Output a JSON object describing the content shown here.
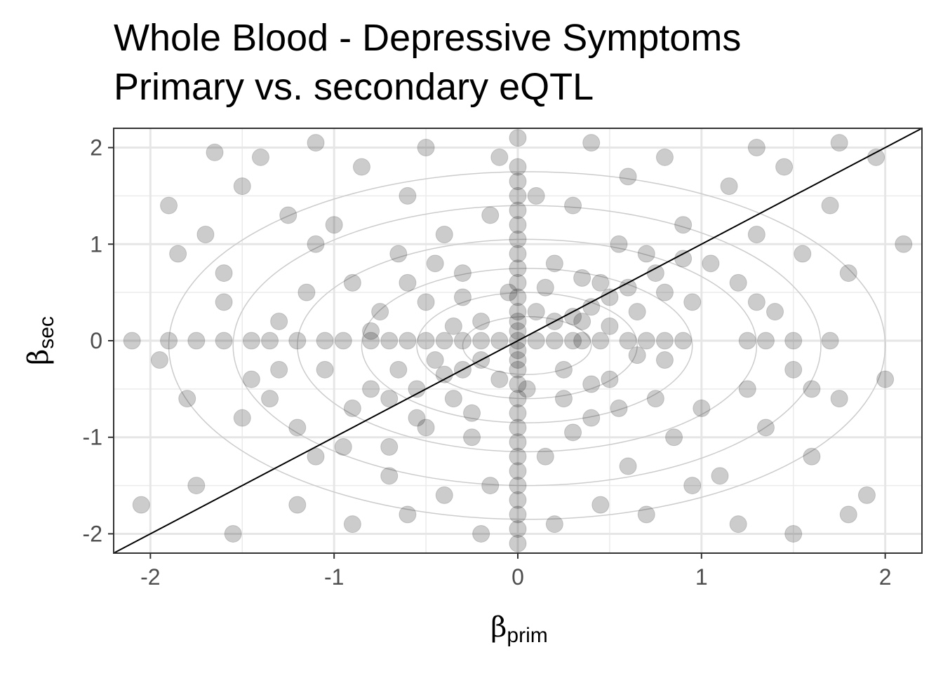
{
  "chart_data": {
    "type": "scatter",
    "title_lines": [
      "Whole Blood - Depressive Symptoms",
      "Primary vs. secondary eQTL"
    ],
    "xlabel": {
      "symbol": "β",
      "subscript": "prim"
    },
    "ylabel": {
      "symbol": "β",
      "subscript": "sec"
    },
    "xlim": [
      -2.2,
      2.2
    ],
    "ylim": [
      -2.2,
      2.2
    ],
    "x_ticks": [
      -2,
      -1,
      0,
      1,
      2
    ],
    "y_ticks": [
      -2,
      -1,
      0,
      1,
      2
    ],
    "x_tick_labels": [
      "-2",
      "-1",
      "0",
      "1",
      "2"
    ],
    "y_tick_labels": [
      "-2",
      "-1",
      "0",
      "1",
      "2"
    ],
    "grid": true,
    "reference_line": {
      "slope": 1,
      "intercept": 0
    },
    "point_color": "#000000",
    "point_alpha": 0.2,
    "contour_color": "#cccccc",
    "points": [
      [
        -1.9,
        1.4
      ],
      [
        -1.85,
        0.9
      ],
      [
        -1.8,
        -0.6
      ],
      [
        -1.7,
        1.1
      ],
      [
        -1.6,
        0.7
      ],
      [
        -1.5,
        1.6
      ],
      [
        -1.45,
        -0.4
      ],
      [
        -1.4,
        1.9
      ],
      [
        -1.35,
        -0.6
      ],
      [
        -1.3,
        0.2
      ],
      [
        -1.25,
        1.3
      ],
      [
        -1.2,
        -0.9
      ],
      [
        -1.15,
        0.5
      ],
      [
        -1.1,
        1.0
      ],
      [
        -1.05,
        -0.3
      ],
      [
        -1.0,
        1.2
      ],
      [
        -0.95,
        -1.1
      ],
      [
        -0.9,
        0.6
      ],
      [
        -0.85,
        1.8
      ],
      [
        -0.8,
        -0.5
      ],
      [
        -0.75,
        0.3
      ],
      [
        -0.7,
        -1.4
      ],
      [
        -0.65,
        0.9
      ],
      [
        -0.6,
        1.5
      ],
      [
        -0.55,
        -0.8
      ],
      [
        -0.5,
        0.4
      ],
      [
        -0.45,
        -0.2
      ],
      [
        -0.4,
        1.1
      ],
      [
        -0.35,
        -0.6
      ],
      [
        -0.3,
        0.7
      ],
      [
        -0.25,
        -1.0
      ],
      [
        -0.2,
        0.2
      ],
      [
        -0.15,
        1.3
      ],
      [
        -0.1,
        -0.4
      ],
      [
        -0.05,
        0.5
      ],
      [
        0.05,
        -0.5
      ],
      [
        0.1,
        0.3
      ],
      [
        0.15,
        -1.2
      ],
      [
        0.2,
        0.8
      ],
      [
        0.25,
        -0.3
      ],
      [
        0.3,
        1.4
      ],
      [
        0.35,
        0.2
      ],
      [
        0.4,
        -0.8
      ],
      [
        0.45,
        0.6
      ],
      [
        0.5,
        -0.4
      ],
      [
        0.55,
        1.0
      ],
      [
        0.6,
        -1.3
      ],
      [
        0.65,
        0.3
      ],
      [
        0.7,
        0.9
      ],
      [
        0.75,
        -0.6
      ],
      [
        0.8,
        0.5
      ],
      [
        0.85,
        -1.0
      ],
      [
        0.9,
        1.2
      ],
      [
        0.95,
        0.4
      ],
      [
        1.0,
        -0.7
      ],
      [
        1.05,
        0.8
      ],
      [
        1.1,
        -1.4
      ],
      [
        1.15,
        1.6
      ],
      [
        1.2,
        0.6
      ],
      [
        1.25,
        -0.5
      ],
      [
        1.3,
        1.1
      ],
      [
        1.35,
        -0.9
      ],
      [
        1.4,
        0.3
      ],
      [
        1.45,
        1.8
      ],
      [
        1.5,
        -0.3
      ],
      [
        1.55,
        0.9
      ],
      [
        1.6,
        -1.2
      ],
      [
        1.7,
        1.4
      ],
      [
        1.75,
        -0.6
      ],
      [
        1.8,
        0.7
      ],
      [
        1.9,
        -1.6
      ],
      [
        1.95,
        1.9
      ],
      [
        2.0,
        -0.4
      ],
      [
        2.1,
        1.0
      ],
      [
        -2.05,
        -1.7
      ],
      [
        -1.95,
        -0.2
      ],
      [
        -1.75,
        -1.5
      ],
      [
        -1.55,
        -2.0
      ],
      [
        -1.5,
        -0.8
      ],
      [
        -1.2,
        -1.7
      ],
      [
        -1.1,
        -1.2
      ],
      [
        -0.9,
        -1.9
      ],
      [
        -0.6,
        -1.8
      ],
      [
        -0.4,
        -1.6
      ],
      [
        -0.2,
        -2.0
      ],
      [
        0.2,
        -1.9
      ],
      [
        0.45,
        -1.7
      ],
      [
        0.7,
        -1.8
      ],
      [
        0.95,
        -1.5
      ],
      [
        1.2,
        -1.9
      ],
      [
        1.5,
        -2.0
      ],
      [
        1.8,
        -1.8
      ],
      [
        -1.65,
        1.95
      ],
      [
        -1.1,
        2.05
      ],
      [
        -0.5,
        2.0
      ],
      [
        -0.1,
        1.9
      ],
      [
        0.4,
        2.05
      ],
      [
        0.8,
        1.9
      ],
      [
        1.3,
        2.0
      ],
      [
        1.75,
        2.05
      ],
      [
        -0.9,
        -0.7
      ],
      [
        -0.7,
        -0.6
      ],
      [
        -0.55,
        -0.5
      ],
      [
        -0.4,
        -0.35
      ],
      [
        -0.3,
        -0.3
      ],
      [
        -0.2,
        -0.2
      ],
      [
        0.2,
        0.2
      ],
      [
        0.3,
        0.25
      ],
      [
        0.4,
        0.35
      ],
      [
        0.5,
        0.45
      ],
      [
        0.6,
        0.55
      ],
      [
        0.75,
        0.7
      ],
      [
        0.9,
        0.85
      ],
      [
        -0.6,
        0.6
      ],
      [
        -0.45,
        0.8
      ],
      [
        -0.3,
        0.45
      ],
      [
        0.25,
        -0.6
      ],
      [
        0.4,
        -0.45
      ],
      [
        0.55,
        -0.7
      ],
      [
        -0.65,
        -0.3
      ],
      [
        -0.5,
        -0.9
      ],
      [
        0.35,
        0.65
      ],
      [
        0.5,
        0.15
      ],
      [
        0.65,
        -0.15
      ],
      [
        -0.35,
        0.15
      ],
      [
        -0.25,
        -0.75
      ],
      [
        0.15,
        0.55
      ],
      [
        0.3,
        -0.95
      ],
      [
        -0.8,
        0.1
      ],
      [
        0.8,
        -0.2
      ],
      [
        -1.3,
        -0.3
      ],
      [
        1.3,
        0.4
      ],
      [
        -1.6,
        0.4
      ],
      [
        1.6,
        -0.5
      ],
      [
        0.1,
        1.5
      ],
      [
        -0.15,
        -1.5
      ],
      [
        0.6,
        1.7
      ],
      [
        -0.7,
        -1.1
      ],
      [
        -1.9,
        0
      ],
      [
        -1.75,
        0
      ],
      [
        -1.6,
        0
      ],
      [
        -1.45,
        0
      ],
      [
        -1.35,
        0
      ],
      [
        -1.2,
        0
      ],
      [
        -1.05,
        0
      ],
      [
        -0.95,
        0
      ],
      [
        -0.8,
        0
      ],
      [
        -0.7,
        0
      ],
      [
        -0.6,
        0
      ],
      [
        -0.5,
        0
      ],
      [
        -0.4,
        0
      ],
      [
        -0.3,
        0
      ],
      [
        -0.2,
        0
      ],
      [
        -0.1,
        0
      ],
      [
        0.1,
        0
      ],
      [
        0.2,
        0
      ],
      [
        0.3,
        0
      ],
      [
        0.35,
        0
      ],
      [
        0.45,
        0
      ],
      [
        0.6,
        0
      ],
      [
        0.7,
        0
      ],
      [
        0.8,
        0
      ],
      [
        0.9,
        0
      ],
      [
        1.25,
        0
      ],
      [
        1.35,
        0
      ],
      [
        1.5,
        0
      ],
      [
        1.7,
        0
      ],
      [
        -2.1,
        0
      ],
      [
        0,
        2.1
      ],
      [
        0,
        1.8
      ],
      [
        0,
        1.65
      ],
      [
        0,
        1.5
      ],
      [
        0,
        1.35
      ],
      [
        0,
        1.2
      ],
      [
        0,
        1.05
      ],
      [
        0,
        0.9
      ],
      [
        0,
        0.75
      ],
      [
        0,
        0.6
      ],
      [
        0,
        0.45
      ],
      [
        0,
        0.3
      ],
      [
        0,
        0.2
      ],
      [
        0,
        0.1
      ],
      [
        0,
        0
      ],
      [
        0,
        -0.1
      ],
      [
        0,
        -0.2
      ],
      [
        0,
        -0.3
      ],
      [
        0,
        -0.45
      ],
      [
        0,
        -0.6
      ],
      [
        0,
        -0.75
      ],
      [
        0,
        -0.9
      ],
      [
        0,
        -1.05
      ],
      [
        0,
        -1.2
      ],
      [
        0,
        -1.35
      ],
      [
        0,
        -1.5
      ],
      [
        0,
        -1.65
      ],
      [
        0,
        -1.8
      ],
      [
        0,
        -1.95
      ],
      [
        0,
        -2.1
      ]
    ]
  }
}
